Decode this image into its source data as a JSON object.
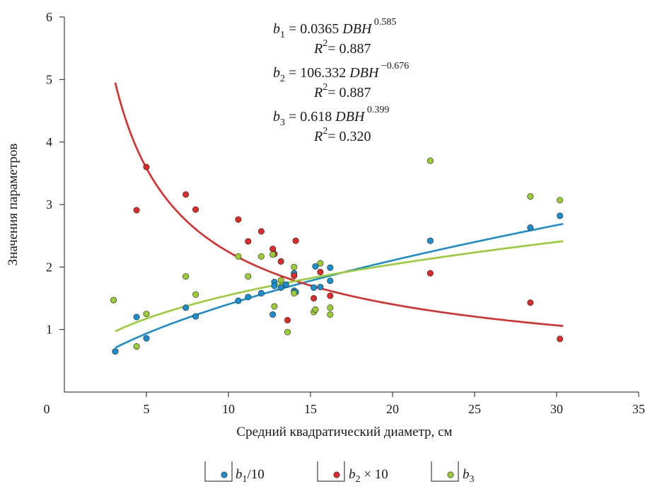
{
  "chart_data": {
    "type": "scatter",
    "xlabel": "Средний квадратический диаметр, см",
    "ylabel": "Значения параметров",
    "xlim": [
      0,
      35
    ],
    "ylim": [
      0,
      6
    ],
    "x_ticks": [
      "0",
      "5",
      "10",
      "15",
      "20",
      "25",
      "30",
      "35"
    ],
    "y_ticks": [
      "1",
      "2",
      "3",
      "4",
      "5",
      "6"
    ],
    "grid": false,
    "legend_position": "bottom",
    "equations": [
      {
        "var": "b",
        "sub": "1",
        "coef": "0.0365",
        "sup": "0.585",
        "r2": "0.887"
      },
      {
        "var": "b",
        "sub": "2",
        "coef": "106.332",
        "sup": "−0.676",
        "r2": "0.887"
      },
      {
        "var": "b",
        "sub": "3",
        "coef": "0.618",
        "sup": "0.399",
        "r2": "0.320"
      }
    ],
    "equation_labels": {
      "dbh": "DBH",
      "r": "R",
      "r_sup": "2",
      "eq_sign": "= "
    },
    "series": [
      {
        "name": "b1/10",
        "legend": {
          "var": "b",
          "sub": "1",
          "suffix": "/10"
        },
        "color": "#1a8fd0",
        "line_color": "#1a8fd0",
        "fit": {
          "a": 0.365,
          "b": 0.585
        },
        "points": [
          [
            3.1,
            0.65
          ],
          [
            4.4,
            1.2
          ],
          [
            5.0,
            0.86
          ],
          [
            7.4,
            1.35
          ],
          [
            8.0,
            1.21
          ],
          [
            10.6,
            1.46
          ],
          [
            11.2,
            1.52
          ],
          [
            12.0,
            1.58
          ],
          [
            12.7,
            1.24
          ],
          [
            12.8,
            1.76
          ],
          [
            12.8,
            1.7
          ],
          [
            13.2,
            1.67
          ],
          [
            13.5,
            1.72
          ],
          [
            14.0,
            1.9
          ],
          [
            14.0,
            1.62
          ],
          [
            14.1,
            1.6
          ],
          [
            15.2,
            1.67
          ],
          [
            15.3,
            2.01
          ],
          [
            15.6,
            1.68
          ],
          [
            16.2,
            1.99
          ],
          [
            16.2,
            1.78
          ],
          [
            22.3,
            2.42
          ],
          [
            28.4,
            2.63
          ],
          [
            30.2,
            2.82
          ]
        ]
      },
      {
        "name": "b2 × 10",
        "legend": {
          "var": "b",
          "sub": "2",
          "suffix": " × 10"
        },
        "color": "#e02a2a",
        "line_color": "#e02a2a",
        "fit": {
          "a": 10.6332,
          "b": -0.676
        },
        "points": [
          [
            4.4,
            2.91
          ],
          [
            5.0,
            3.6
          ],
          [
            7.4,
            3.16
          ],
          [
            8.0,
            2.92
          ],
          [
            10.6,
            2.76
          ],
          [
            11.2,
            2.41
          ],
          [
            12.0,
            2.57
          ],
          [
            12.7,
            2.29
          ],
          [
            12.8,
            2.21
          ],
          [
            13.2,
            2.09
          ],
          [
            13.6,
            1.15
          ],
          [
            14.0,
            1.86
          ],
          [
            14.1,
            2.42
          ],
          [
            15.2,
            1.5
          ],
          [
            15.6,
            1.92
          ],
          [
            16.2,
            1.54
          ],
          [
            22.3,
            1.9
          ],
          [
            28.4,
            1.43
          ],
          [
            30.2,
            0.85
          ]
        ]
      },
      {
        "name": "b3",
        "legend": {
          "var": "b",
          "sub": "3",
          "suffix": ""
        },
        "color": "#9acd32",
        "line_color": "#9acd32",
        "fit": {
          "a": 0.618,
          "b": 0.399
        },
        "points": [
          [
            3.0,
            1.47
          ],
          [
            4.4,
            0.73
          ],
          [
            5.0,
            1.25
          ],
          [
            7.4,
            1.85
          ],
          [
            8.0,
            1.56
          ],
          [
            10.6,
            2.17
          ],
          [
            11.2,
            1.85
          ],
          [
            12.0,
            2.17
          ],
          [
            12.7,
            2.2
          ],
          [
            12.8,
            1.37
          ],
          [
            13.2,
            1.79
          ],
          [
            13.6,
            0.96
          ],
          [
            14.0,
            2.0
          ],
          [
            14.0,
            1.58
          ],
          [
            15.2,
            1.28
          ],
          [
            15.3,
            1.32
          ],
          [
            15.6,
            2.06
          ],
          [
            16.2,
            1.35
          ],
          [
            16.2,
            1.24
          ],
          [
            22.3,
            3.7
          ],
          [
            28.4,
            3.13
          ],
          [
            30.2,
            3.07
          ]
        ]
      }
    ]
  }
}
